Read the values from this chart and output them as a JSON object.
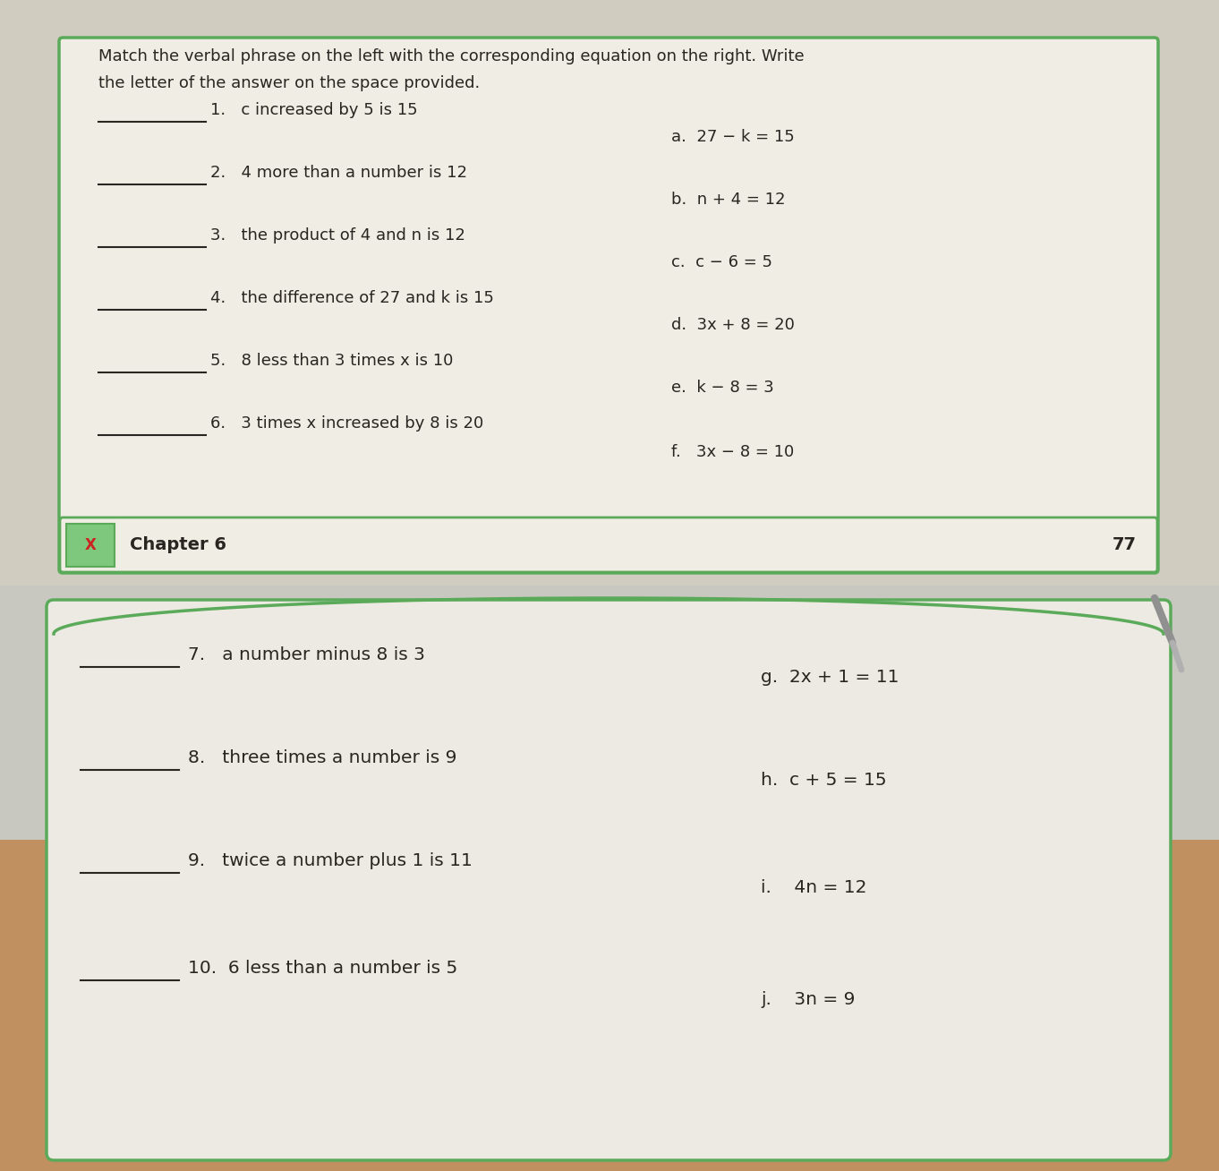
{
  "bg_top": "#d0cdc0",
  "bg_bottom_upper": "#c8c5ba",
  "bg_bottom_lower": "#c8a882",
  "paper_color_top": "#f0ede4",
  "paper_color_bottom": "#eceae2",
  "border_color": "#5aaa5a",
  "text_color": "#2a2520",
  "header_text_line1": "Match the verbal phrase on the left with the corresponding equation on the right. Write",
  "header_text_line2": "the letter of the answer on the space provided.",
  "items_left": [
    "1.   c increased by 5 is 15",
    "2.   4 more than a number is 12",
    "3.   the product of 4 and n is 12",
    "4.   the difference of 27 and k is 15",
    "5.   8 less than 3 times x is 10",
    "6.   3 times x increased by 8 is 20"
  ],
  "items_right_top": [
    "a.  27 − k = 15",
    "b.  n + 4 = 12",
    "c.  c − 6 = 5",
    "d.  3x + 8 = 20",
    "e.  k − 8 = 3",
    "f.   3x − 8 = 10"
  ],
  "chapter_label": "Chapter 6",
  "page_number": "77",
  "items_left_bottom": [
    "7.   a number minus 8 is 3",
    "8.   three times a number is 9",
    "9.   twice a number plus 1 is 11",
    "10.  6 less than a number is 5"
  ],
  "items_right_bottom": [
    "g.  2x + 1 = 11",
    "h.  c + 5 = 15",
    "i.    4n = 12",
    "j.    3n = 9"
  ]
}
